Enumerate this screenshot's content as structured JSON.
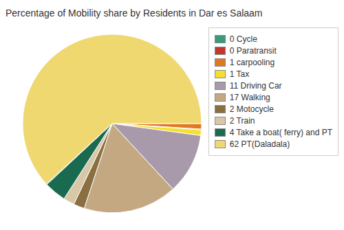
{
  "chart_data": {
    "type": "pie",
    "title": "Percentage of Mobility share by Residents in Dar es Salaam",
    "categories": [
      "1 carpooling",
      "0 Paratransit",
      "1 Tax",
      "11 Driving Car",
      "17 Walking",
      "2 Motocycle",
      "2 Train",
      "4 Take a boat( ferry) and PT",
      "0 Cycle",
      "62 PT(Daladala)"
    ],
    "values": [
      1,
      0.15,
      1,
      11,
      17,
      2,
      2,
      4,
      0.15,
      62
    ],
    "colors": [
      "#e07820",
      "#c0392b",
      "#f5e030",
      "#a89aaa",
      "#c4a882",
      "#8a7040",
      "#d8c8a8",
      "#1a6a50",
      "#3a9a7a",
      "#f0d870"
    ],
    "legend_labels": [
      "0 Cycle",
      "0 Paratransit",
      "1 carpooling",
      "1 Tax",
      "11 Driving Car",
      "17 Walking",
      "2 Motocycle",
      "2 Train",
      "4 Take a boat( ferry) and PT",
      "62 PT(Daladala)"
    ]
  }
}
